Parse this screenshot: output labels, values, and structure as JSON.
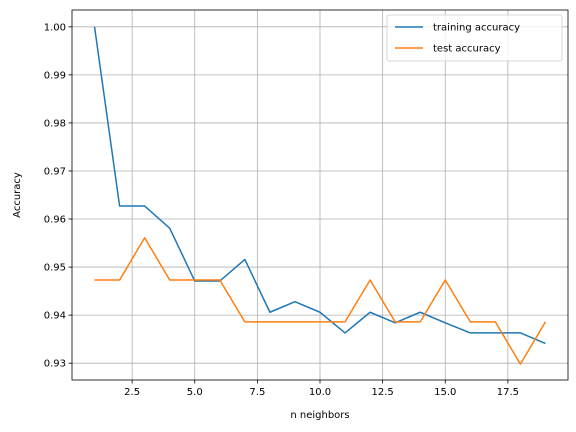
{
  "chart_data": {
    "type": "line",
    "title": "",
    "xlabel": "n neighbors",
    "ylabel": "Accuracy",
    "xlim": [
      0.1,
      19.9
    ],
    "ylim": [
      0.9265,
      1.0035
    ],
    "x_ticks": [
      2.5,
      5.0,
      7.5,
      10.0,
      12.5,
      15.0,
      17.5
    ],
    "x_tick_labels": [
      "2.5",
      "5.0",
      "7.5",
      "10.0",
      "12.5",
      "15.0",
      "17.5"
    ],
    "y_ticks": [
      0.93,
      0.94,
      0.95,
      0.96,
      0.97,
      0.98,
      0.99,
      1.0
    ],
    "y_tick_labels": [
      "0.93",
      "0.94",
      "0.95",
      "0.96",
      "0.97",
      "0.98",
      "0.99",
      "1.00"
    ],
    "grid": true,
    "legend_position": "top-right",
    "x": [
      1,
      2,
      3,
      4,
      5,
      6,
      7,
      8,
      9,
      10,
      11,
      12,
      13,
      14,
      15,
      16,
      17,
      18,
      19
    ],
    "series": [
      {
        "name": "training accuracy",
        "color": "#1f77b4",
        "values": [
          1.0,
          0.9627,
          0.9627,
          0.9581,
          0.9471,
          0.9471,
          0.9516,
          0.9406,
          0.9428,
          0.9406,
          0.9363,
          0.9406,
          0.9384,
          0.9406,
          0.9384,
          0.9363,
          0.9363,
          0.9363,
          0.9341
        ]
      },
      {
        "name": "test accuracy",
        "color": "#ff7f0e",
        "values": [
          0.9473,
          0.9473,
          0.9561,
          0.9473,
          0.9473,
          0.9473,
          0.9386,
          0.9386,
          0.9386,
          0.9386,
          0.9386,
          0.9473,
          0.9386,
          0.9386,
          0.9473,
          0.9386,
          0.9386,
          0.9298,
          0.9386
        ]
      }
    ]
  }
}
